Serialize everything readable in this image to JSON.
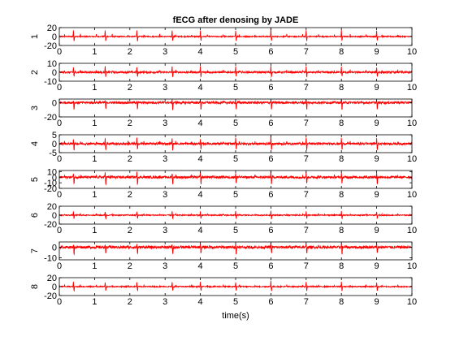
{
  "chart_data": {
    "type": "line",
    "title": "fECG after denosing by JADE",
    "xlabel": "time(s)",
    "xlim": [
      0,
      10
    ],
    "xticks": [
      "0",
      "1",
      "2",
      "3",
      "4",
      "5",
      "6",
      "7",
      "8",
      "9",
      "10"
    ],
    "grid": false,
    "line_color": "#ff0000",
    "maternal_spike_times": [
      0.4,
      1.3,
      2.2,
      3.2,
      4.0,
      5.0,
      6.0,
      7.0,
      8.0,
      9.0
    ],
    "fetal_spike_times": [
      0.15,
      0.6,
      1.05,
      1.5,
      1.95,
      2.4,
      2.85,
      3.3,
      3.75,
      4.2,
      4.65,
      5.1,
      5.55,
      6.0,
      6.45,
      6.9,
      7.35,
      7.8,
      8.25,
      8.7,
      9.15,
      9.6
    ],
    "channels": [
      {
        "label": "1",
        "ylim": [
          -20,
          20
        ],
        "yticks": [
          "20",
          "0",
          "-20"
        ],
        "ytick_values": [
          20,
          0,
          -20
        ],
        "spike_up": 14,
        "spike_down": -12,
        "noise": 1.2
      },
      {
        "label": "2",
        "ylim": [
          -10,
          10
        ],
        "yticks": [
          "10",
          "0",
          "-10"
        ],
        "ytick_values": [
          10,
          0,
          -10
        ],
        "spike_up": 6,
        "spike_down": -6,
        "noise": 1.0
      },
      {
        "label": "3",
        "ylim": [
          -20,
          5
        ],
        "yticks": [
          "0",
          "-20"
        ],
        "ytick_values": [
          0,
          -20
        ],
        "spike_up": 3,
        "spike_down": -12,
        "noise": 1.5
      },
      {
        "label": "4",
        "ylim": [
          -5,
          5
        ],
        "yticks": [
          "5",
          "0",
          "-5"
        ],
        "ytick_values": [
          5,
          0,
          -5
        ],
        "spike_up": 3,
        "spike_down": -4.5,
        "noise": 0.6
      },
      {
        "label": "5",
        "ylim": [
          -20,
          12
        ],
        "yticks": [
          "10",
          "0",
          "-10",
          "-20"
        ],
        "ytick_values": [
          10,
          0,
          -10,
          -20
        ],
        "spike_up": 8,
        "spike_down": -15,
        "noise": 2.0
      },
      {
        "label": "6",
        "ylim": [
          -20,
          20
        ],
        "yticks": [
          "20",
          "0",
          "-20"
        ],
        "ytick_values": [
          20,
          0,
          -20
        ],
        "spike_up": 8,
        "spike_down": -10,
        "noise": 1.2
      },
      {
        "label": "7",
        "ylim": [
          -12,
          5
        ],
        "yticks": [
          "0",
          "-10"
        ],
        "ytick_values": [
          0,
          -10
        ],
        "spike_up": 3,
        "spike_down": -8,
        "noise": 1.2
      },
      {
        "label": "8",
        "ylim": [
          -20,
          20
        ],
        "yticks": [
          "20",
          "0",
          "-20"
        ],
        "ytick_values": [
          20,
          0,
          -20
        ],
        "spike_up": 10,
        "spike_down": -12,
        "noise": 1.2
      }
    ]
  }
}
